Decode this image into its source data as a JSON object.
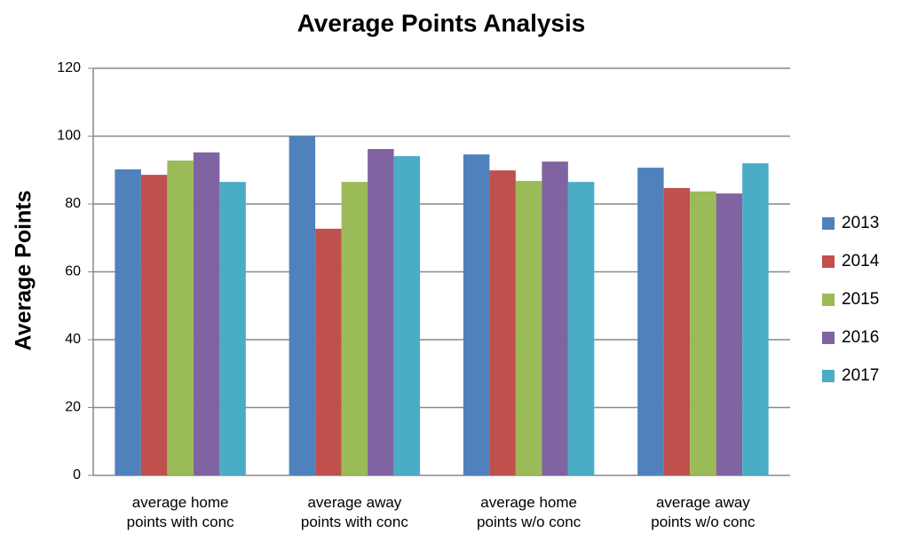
{
  "chart_data": {
    "type": "bar",
    "title": "Average Points Analysis",
    "y_label": "Average Points",
    "categories": [
      "average home points with conc",
      "average away points with conc",
      "average home points w/o conc",
      "average away points w/o conc"
    ],
    "series": [
      {
        "name": "2013",
        "color": "#4f81bd",
        "values": [
          90.2,
          100,
          94.6,
          90.7
        ]
      },
      {
        "name": "2014",
        "color": "#c0504d",
        "values": [
          88.6,
          72.7,
          89.9,
          84.7
        ]
      },
      {
        "name": "2015",
        "color": "#9bbb59",
        "values": [
          92.8,
          86.5,
          86.8,
          83.7
        ]
      },
      {
        "name": "2016",
        "color": "#8064a2",
        "values": [
          95.2,
          96.2,
          92.5,
          83.1
        ]
      },
      {
        "name": "2017",
        "color": "#4bacc6",
        "values": [
          86.5,
          94.1,
          86.5,
          92
        ]
      }
    ],
    "ylim": [
      0,
      120
    ],
    "yticks": [
      0,
      20,
      40,
      60,
      80,
      100,
      120
    ],
    "grid": true,
    "legend": "right"
  }
}
